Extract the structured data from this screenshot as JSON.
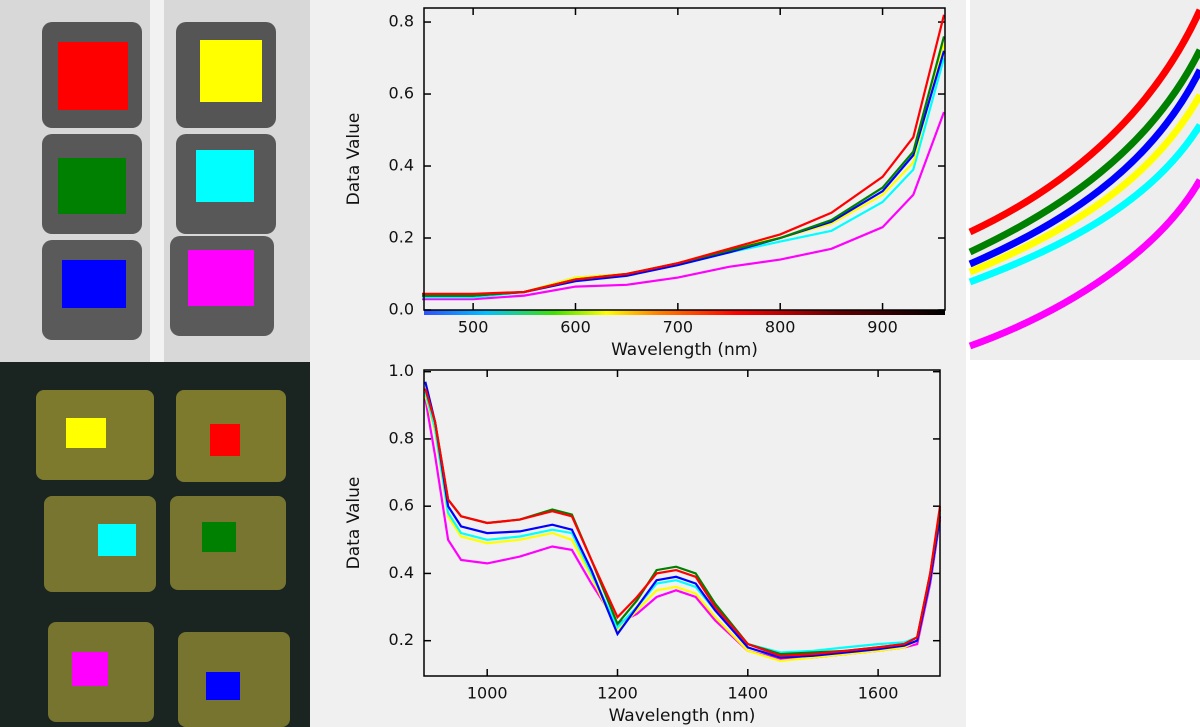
{
  "chart_data": [
    {
      "type": "line",
      "xlabel": "Wavelength (nm)",
      "ylabel": "Data Value",
      "x": [
        450,
        500,
        550,
        600,
        650,
        700,
        750,
        800,
        850,
        900,
        930,
        960
      ],
      "xlim": [
        452,
        961
      ],
      "xticks": [
        500,
        600,
        700,
        800,
        900
      ],
      "ylim": [
        0,
        0.839
      ],
      "yticks": [
        {
          "value": 0,
          "label": "0.0"
        },
        0.2,
        0.4,
        0.6,
        0.8
      ],
      "series": [
        {
          "color": "#ff00ff",
          "values": [
            0.03,
            0.03,
            0.04,
            0.065,
            0.07,
            0.09,
            0.12,
            0.14,
            0.17,
            0.23,
            0.32,
            0.55
          ]
        },
        {
          "color": "#00ffff",
          "values": [
            0.035,
            0.035,
            0.05,
            0.09,
            0.1,
            0.125,
            0.16,
            0.19,
            0.22,
            0.3,
            0.39,
            0.7
          ]
        },
        {
          "color": "#ffff00",
          "values": [
            0.04,
            0.04,
            0.05,
            0.09,
            0.1,
            0.13,
            0.17,
            0.2,
            0.24,
            0.32,
            0.41,
            0.74
          ]
        },
        {
          "color": "#0000ff",
          "values": [
            0.04,
            0.04,
            0.05,
            0.08,
            0.095,
            0.125,
            0.16,
            0.2,
            0.245,
            0.33,
            0.43,
            0.72
          ]
        },
        {
          "color": "#008000",
          "values": [
            0.04,
            0.04,
            0.05,
            0.085,
            0.1,
            0.13,
            0.165,
            0.2,
            0.25,
            0.34,
            0.44,
            0.76
          ]
        },
        {
          "color": "#ff0000",
          "values": [
            0.045,
            0.045,
            0.05,
            0.085,
            0.1,
            0.13,
            0.17,
            0.21,
            0.27,
            0.37,
            0.48,
            0.82
          ]
        }
      ]
    },
    {
      "type": "line",
      "xlabel": "Wavelength (nm)",
      "ylabel": "Data Value",
      "x": [
        905,
        920,
        940,
        960,
        1000,
        1050,
        1100,
        1130,
        1160,
        1200,
        1230,
        1260,
        1290,
        1320,
        1350,
        1400,
        1450,
        1500,
        1550,
        1600,
        1640,
        1660,
        1680,
        1695
      ],
      "xlim": [
        903,
        1695
      ],
      "xticks": [
        1000,
        1200,
        1400,
        1600
      ],
      "ylim": [
        0.095,
        1.005
      ],
      "yticks": [
        0.2,
        0.4,
        0.6,
        0.8,
        {
          "value": 1,
          "label": "1.0"
        }
      ],
      "series": [
        {
          "color": "#ff00ff",
          "values": [
            0.92,
            0.75,
            0.5,
            0.44,
            0.43,
            0.45,
            0.48,
            0.47,
            0.37,
            0.25,
            0.28,
            0.33,
            0.35,
            0.33,
            0.26,
            0.17,
            0.145,
            0.15,
            0.16,
            0.17,
            0.18,
            0.19,
            0.37,
            0.56
          ]
        },
        {
          "color": "#ffff00",
          "values": [
            0.93,
            0.82,
            0.57,
            0.51,
            0.49,
            0.5,
            0.52,
            0.5,
            0.39,
            0.23,
            0.29,
            0.35,
            0.36,
            0.34,
            0.27,
            0.17,
            0.14,
            0.15,
            0.16,
            0.17,
            0.18,
            0.2,
            0.38,
            0.57
          ]
        },
        {
          "color": "#00ffff",
          "values": [
            0.94,
            0.83,
            0.58,
            0.52,
            0.5,
            0.51,
            0.53,
            0.52,
            0.4,
            0.24,
            0.3,
            0.37,
            0.38,
            0.36,
            0.29,
            0.19,
            0.165,
            0.17,
            0.18,
            0.19,
            0.195,
            0.21,
            0.39,
            0.58
          ]
        },
        {
          "color": "#0000ff",
          "values": [
            0.97,
            0.85,
            0.6,
            0.54,
            0.52,
            0.525,
            0.545,
            0.53,
            0.41,
            0.22,
            0.3,
            0.38,
            0.39,
            0.37,
            0.29,
            0.18,
            0.15,
            0.155,
            0.165,
            0.175,
            0.185,
            0.2,
            0.38,
            0.57
          ]
        },
        {
          "color": "#008000",
          "values": [
            0.95,
            0.85,
            0.62,
            0.57,
            0.55,
            0.56,
            0.59,
            0.575,
            0.44,
            0.25,
            0.32,
            0.41,
            0.42,
            0.4,
            0.31,
            0.19,
            0.16,
            0.165,
            0.17,
            0.18,
            0.19,
            0.21,
            0.4,
            0.59
          ]
        },
        {
          "color": "#ff0000",
          "values": [
            0.95,
            0.85,
            0.62,
            0.57,
            0.55,
            0.56,
            0.585,
            0.57,
            0.44,
            0.27,
            0.33,
            0.4,
            0.41,
            0.39,
            0.3,
            0.19,
            0.155,
            0.16,
            0.17,
            0.18,
            0.19,
            0.21,
            0.4,
            0.6
          ]
        }
      ]
    }
  ]
}
